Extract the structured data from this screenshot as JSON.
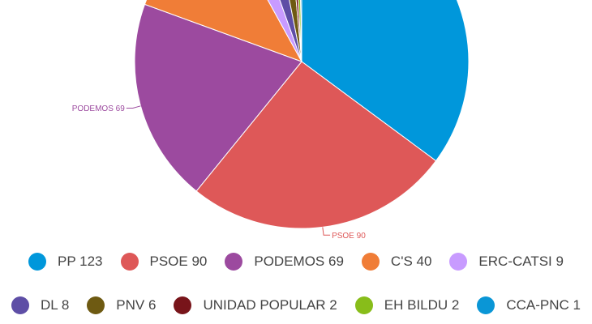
{
  "chart_data": {
    "type": "pie",
    "title": "",
    "legend_position": "bottom",
    "slices": [
      {
        "label": "PP 123",
        "name": "PP",
        "value": 123,
        "color": "#0097db"
      },
      {
        "label": "PSOE 90",
        "name": "PSOE",
        "value": 90,
        "color": "#de5858"
      },
      {
        "label": "PODEMOS 69",
        "name": "PODEMOS",
        "value": 69,
        "color": "#9c4a9f"
      },
      {
        "label": "C'S 40",
        "name": "C'S",
        "value": 40,
        "color": "#f07d37"
      },
      {
        "label": "ERC-CATSI 9",
        "name": "ERC-CATSI",
        "value": 9,
        "color": "#c89bff"
      },
      {
        "label": "DL 8",
        "name": "DL",
        "value": 8,
        "color": "#5e4ea6"
      },
      {
        "label": "PNV 6",
        "name": "PNV",
        "value": 6,
        "color": "#6e5a12"
      },
      {
        "label": "UNIDAD POPULAR 2",
        "name": "UNIDAD POPULAR",
        "value": 2,
        "color": "#78141a"
      },
      {
        "label": "EH BILDU 2",
        "name": "EH BILDU",
        "value": 2,
        "color": "#88bd1a"
      },
      {
        "label": "CCA-PNC 1",
        "name": "CCA-PNC",
        "value": 1,
        "color": "#0a96d6"
      }
    ],
    "slice_labels_shown": [
      "PODEMOS 69",
      "PSOE 90"
    ]
  }
}
